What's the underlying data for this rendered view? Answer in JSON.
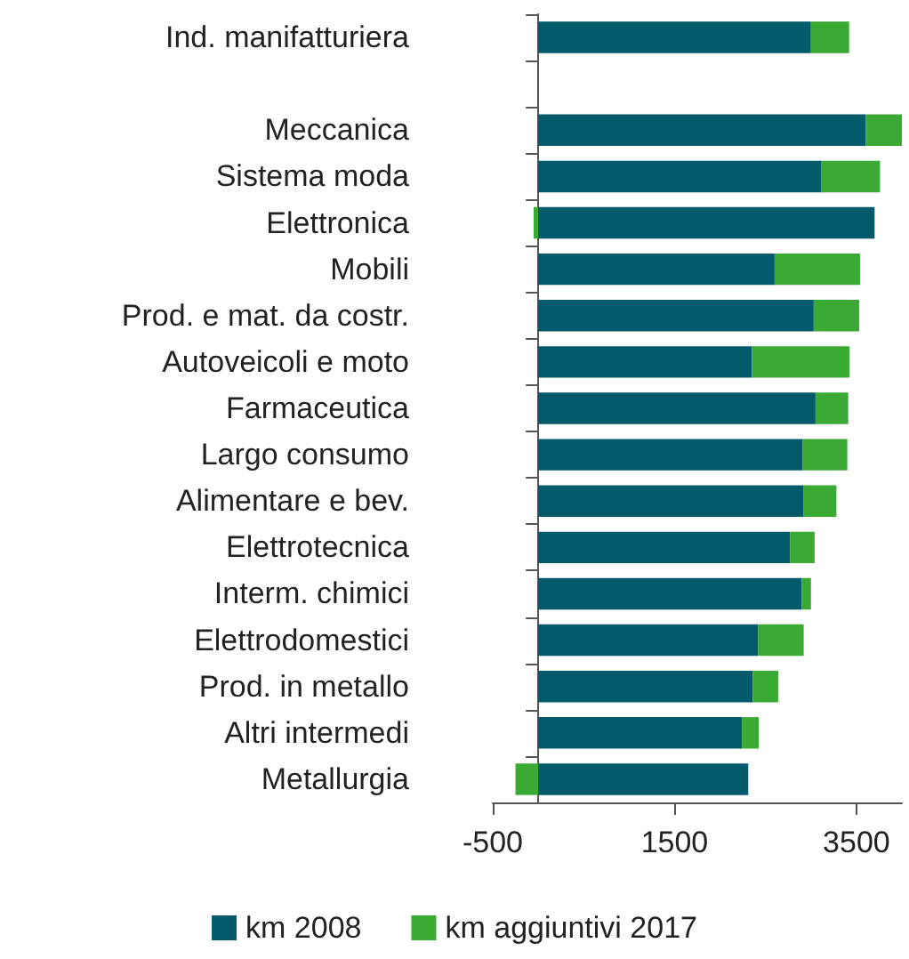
{
  "chart_data": {
    "type": "bar",
    "orientation": "horizontal",
    "stacked": true,
    "categories": [
      "Ind. manifatturiera",
      null,
      "Meccanica",
      "Sistema moda",
      "Elettronica",
      "Mobili",
      "Prod. e mat. da costr.",
      "Autoveicoli e moto",
      "Farmaceutica",
      "Largo consumo",
      "Alimentare e bev.",
      "Elettrotecnica",
      "Interm. chimici",
      "Elettrodomestici",
      "Prod. in metallo",
      "Altri intermedi",
      "Metallurgia"
    ],
    "series": [
      {
        "name": "km 2008",
        "color": "#035a6a",
        "values": [
          3000,
          null,
          3600,
          3110,
          3700,
          2600,
          3030,
          2350,
          3050,
          2910,
          2920,
          2770,
          2900,
          2420,
          2360,
          2240,
          2310
        ]
      },
      {
        "name": "km aggiuntivi 2017",
        "color": "#3aaa35",
        "values": [
          420,
          null,
          400,
          650,
          -50,
          940,
          500,
          1075,
          360,
          490,
          360,
          270,
          100,
          500,
          280,
          185,
          -250
        ]
      }
    ],
    "xlim": [
      -500,
      4000
    ],
    "xticks": [
      -500,
      1500,
      3500
    ],
    "grid": false,
    "legend": "bottom"
  }
}
